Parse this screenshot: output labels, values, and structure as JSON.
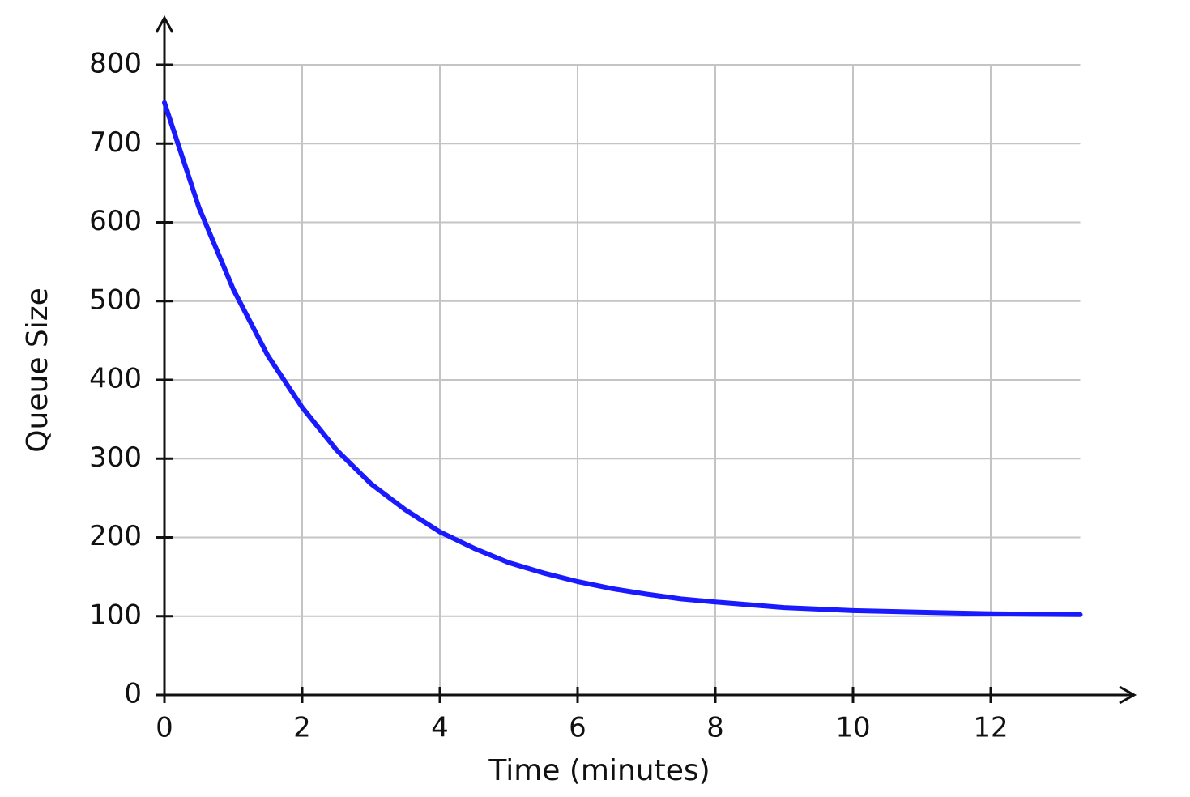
{
  "chart_data": {
    "type": "line",
    "x_label": "Time (minutes)",
    "y_label": "Queue Size",
    "x": [
      0,
      0.5,
      1,
      1.5,
      2,
      2.5,
      3,
      3.5,
      4,
      4.5,
      5,
      5.5,
      6,
      6.5,
      7,
      7.5,
      8,
      9,
      10,
      11,
      12,
      13.3
    ],
    "series": [
      {
        "color": "#1a1aff",
        "values": [
          752,
          619,
          515,
          431,
          365,
          311,
          268,
          235,
          207,
          186,
          168,
          155,
          144,
          135,
          128,
          122,
          118,
          111,
          107,
          105,
          103,
          102
        ]
      }
    ],
    "xlim": [
      0,
      13.3
    ],
    "xticks": [
      0,
      2,
      4,
      6,
      8,
      10,
      12
    ],
    "ylim": [
      0,
      800
    ],
    "yticks": [
      0,
      100,
      200,
      300,
      400,
      500,
      600,
      700,
      800
    ],
    "grid": true
  }
}
